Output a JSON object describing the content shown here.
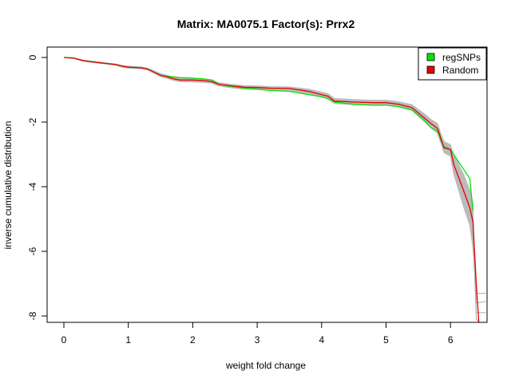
{
  "chart_data": {
    "type": "line",
    "title": "Matrix: MA0075.1 Factor(s): Prrx2",
    "xlabel": "weight fold change",
    "ylabel": "inverse cumulative distribution",
    "xlim": [
      0,
      6.55
    ],
    "ylim": [
      -8.3,
      0.2
    ],
    "xticks": [
      0,
      1,
      2,
      3,
      4,
      5,
      6
    ],
    "yticks": [
      0,
      -2,
      -4,
      -6,
      -8
    ],
    "grid": false,
    "legend": {
      "position": "top-right",
      "entries": [
        {
          "label": "regSNPs",
          "color": "#00e600"
        },
        {
          "label": "Random",
          "color": "#e60000"
        }
      ]
    },
    "series": [
      {
        "name": "regSNPs",
        "color": "#00e600",
        "x": [
          0.0,
          0.15,
          0.3,
          0.5,
          0.8,
          0.9,
          1.0,
          1.2,
          1.3,
          1.5,
          1.6,
          1.7,
          1.8,
          2.0,
          2.2,
          2.3,
          2.4,
          2.6,
          2.8,
          3.0,
          3.2,
          3.5,
          3.8,
          4.0,
          4.1,
          4.2,
          4.5,
          4.8,
          5.0,
          5.2,
          5.4,
          5.6,
          5.7,
          5.8,
          5.85,
          5.9,
          6.0,
          6.05,
          6.2,
          6.3,
          6.35
        ],
        "y": [
          0.0,
          -0.02,
          -0.1,
          -0.15,
          -0.22,
          -0.27,
          -0.3,
          -0.32,
          -0.36,
          -0.55,
          -0.58,
          -0.6,
          -0.62,
          -0.64,
          -0.67,
          -0.7,
          -0.83,
          -0.9,
          -0.95,
          -0.98,
          -1.02,
          -1.05,
          -1.15,
          -1.22,
          -1.28,
          -1.38,
          -1.45,
          -1.48,
          -1.48,
          -1.52,
          -1.62,
          -1.95,
          -2.18,
          -2.28,
          -2.55,
          -2.75,
          -2.85,
          -3.0,
          -3.45,
          -3.75,
          -4.75
        ]
      },
      {
        "name": "Random",
        "color": "#e60000",
        "x": [
          0.0,
          0.15,
          0.3,
          0.5,
          0.8,
          0.9,
          1.0,
          1.2,
          1.3,
          1.5,
          1.6,
          1.7,
          1.8,
          2.0,
          2.2,
          2.3,
          2.4,
          2.6,
          2.8,
          3.0,
          3.2,
          3.5,
          3.8,
          4.0,
          4.1,
          4.2,
          4.5,
          4.8,
          5.0,
          5.2,
          5.4,
          5.6,
          5.7,
          5.8,
          5.85,
          5.9,
          6.0,
          6.05,
          6.2,
          6.3,
          6.35,
          6.4,
          6.45
        ],
        "y": [
          0.0,
          -0.02,
          -0.1,
          -0.15,
          -0.22,
          -0.27,
          -0.3,
          -0.32,
          -0.36,
          -0.55,
          -0.6,
          -0.66,
          -0.7,
          -0.7,
          -0.72,
          -0.75,
          -0.83,
          -0.88,
          -0.92,
          -0.93,
          -0.95,
          -0.96,
          -1.05,
          -1.15,
          -1.2,
          -1.35,
          -1.38,
          -1.4,
          -1.4,
          -1.45,
          -1.55,
          -1.88,
          -2.05,
          -2.2,
          -2.5,
          -2.8,
          -2.85,
          -3.3,
          -4.1,
          -4.65,
          -5.1,
          -7.0,
          -8.5
        ]
      }
    ],
    "random_band": {
      "color": "#bbbbbb",
      "x": [
        0.0,
        0.15,
        0.3,
        0.5,
        0.8,
        0.9,
        1.0,
        1.2,
        1.3,
        1.5,
        1.6,
        1.7,
        1.8,
        2.0,
        2.2,
        2.3,
        2.4,
        2.6,
        2.8,
        3.0,
        3.2,
        3.5,
        3.8,
        4.0,
        4.1,
        4.2,
        4.5,
        4.8,
        5.0,
        5.2,
        5.4,
        5.6,
        5.7,
        5.8,
        5.85,
        5.9,
        6.0,
        6.05,
        6.2,
        6.3,
        6.35
      ],
      "upper": [
        0.0,
        -0.01,
        -0.08,
        -0.13,
        -0.2,
        -0.24,
        -0.27,
        -0.29,
        -0.33,
        -0.5,
        -0.55,
        -0.6,
        -0.64,
        -0.65,
        -0.67,
        -0.7,
        -0.78,
        -0.83,
        -0.87,
        -0.88,
        -0.9,
        -0.91,
        -0.98,
        -1.07,
        -1.12,
        -1.27,
        -1.3,
        -1.32,
        -1.32,
        -1.37,
        -1.46,
        -1.75,
        -1.92,
        -2.05,
        -2.35,
        -2.6,
        -2.7,
        -3.0,
        -3.6,
        -4.1,
        -4.5
      ],
      "lower": [
        0.0,
        -0.03,
        -0.12,
        -0.17,
        -0.24,
        -0.3,
        -0.33,
        -0.35,
        -0.39,
        -0.6,
        -0.65,
        -0.71,
        -0.75,
        -0.76,
        -0.78,
        -0.8,
        -0.88,
        -0.94,
        -0.98,
        -0.99,
        -1.01,
        -1.02,
        -1.12,
        -1.22,
        -1.28,
        -1.43,
        -1.46,
        -1.48,
        -1.48,
        -1.53,
        -1.64,
        -2.0,
        -2.18,
        -2.35,
        -2.65,
        -2.95,
        -3.05,
        -3.6,
        -4.6,
        -5.2,
        -5.9
      ],
      "tails": [
        {
          "x": [
            6.35,
            6.4,
            6.45,
            6.55
          ],
          "y": [
            -5.9,
            -7.3,
            -7.3,
            -7.3
          ]
        },
        {
          "x": [
            6.35,
            6.4,
            6.45,
            6.55
          ],
          "y": [
            -5.5,
            -7.9,
            -7.9,
            -7.9
          ]
        },
        {
          "x": [
            6.35,
            6.4,
            6.55
          ],
          "y": [
            -5.2,
            -7.6,
            -7.55
          ]
        },
        {
          "x": [
            6.35,
            6.4,
            6.5
          ],
          "y": [
            -4.8,
            -8.1,
            -8.3
          ]
        }
      ]
    }
  }
}
